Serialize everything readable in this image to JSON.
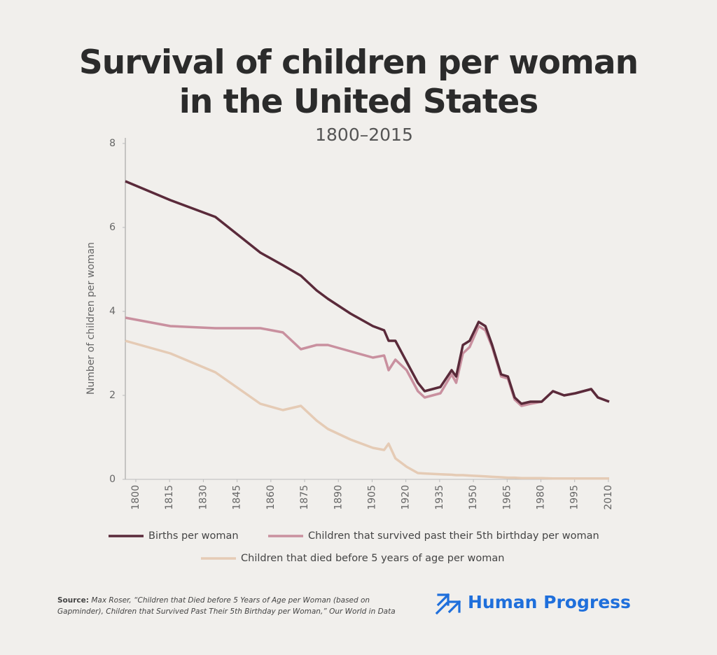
{
  "chart_data": {
    "type": "line",
    "title": "Survival of children per woman in the United States",
    "subtitle": "1800–2015",
    "y_label": "Number of children per woman",
    "x": [
      1800,
      1820,
      1840,
      1860,
      1870,
      1878,
      1885,
      1890,
      1900,
      1910,
      1915,
      1917,
      1920,
      1925,
      1930,
      1933,
      1940,
      1945,
      1947,
      1950,
      1953,
      1957,
      1960,
      1963,
      1967,
      1970,
      1973,
      1976,
      1980,
      1985,
      1990,
      1995,
      2000,
      2007,
      2010,
      2015
    ],
    "series": [
      {
        "name": "Births per woman",
        "color": "#5a2a3a",
        "values": [
          7.1,
          6.65,
          6.25,
          5.4,
          5.1,
          4.85,
          4.5,
          4.3,
          3.95,
          3.65,
          3.55,
          3.3,
          3.3,
          2.8,
          2.3,
          2.1,
          2.2,
          2.6,
          2.45,
          3.2,
          3.3,
          3.75,
          3.65,
          3.2,
          2.5,
          2.45,
          1.95,
          1.8,
          1.85,
          1.85,
          2.1,
          2.0,
          2.05,
          2.15,
          1.95,
          1.85
        ]
      },
      {
        "name": "Children that survived past their 5th birthday per woman",
        "color": "#c9909f",
        "values": [
          3.85,
          3.65,
          3.6,
          3.6,
          3.5,
          3.1,
          3.2,
          3.2,
          3.05,
          2.9,
          2.95,
          2.6,
          2.85,
          2.6,
          2.1,
          1.95,
          2.05,
          2.5,
          2.3,
          3.0,
          3.15,
          3.65,
          3.55,
          3.15,
          2.45,
          2.4,
          1.9,
          1.75,
          1.8,
          1.85,
          2.1,
          2.0,
          2.05,
          2.15,
          1.95,
          1.85
        ]
      },
      {
        "name": "Children that died before 5 years of age per woman",
        "color": "#e5cbb5",
        "values": [
          3.3,
          3.0,
          2.55,
          1.8,
          1.65,
          1.75,
          1.4,
          1.2,
          0.95,
          0.75,
          0.7,
          0.85,
          0.5,
          0.3,
          0.15,
          0.14,
          0.12,
          0.11,
          0.1,
          0.1,
          0.09,
          0.08,
          0.07,
          0.06,
          0.05,
          0.04,
          0.04,
          0.03,
          0.03,
          0.03,
          0.02,
          0.02,
          0.02,
          0.02,
          0.02,
          0.02
        ]
      }
    ],
    "xlim": [
      1800,
      2015
    ],
    "xticks": [
      1800,
      1815,
      1830,
      1845,
      1860,
      1875,
      1890,
      1905,
      1920,
      1935,
      1950,
      1965,
      1980,
      1995,
      2010
    ],
    "ylim": [
      0,
      8
    ],
    "yticks": [
      0,
      2,
      4,
      6,
      8
    ],
    "grid": false,
    "source_label": "Source:",
    "source": "Max Roser, “Children that Died before 5 Years of Age per Woman (based on Gapminder), Children that Survived Past Their 5th Birthday per Woman,” Our World in Data",
    "brand": "Human Progress"
  }
}
